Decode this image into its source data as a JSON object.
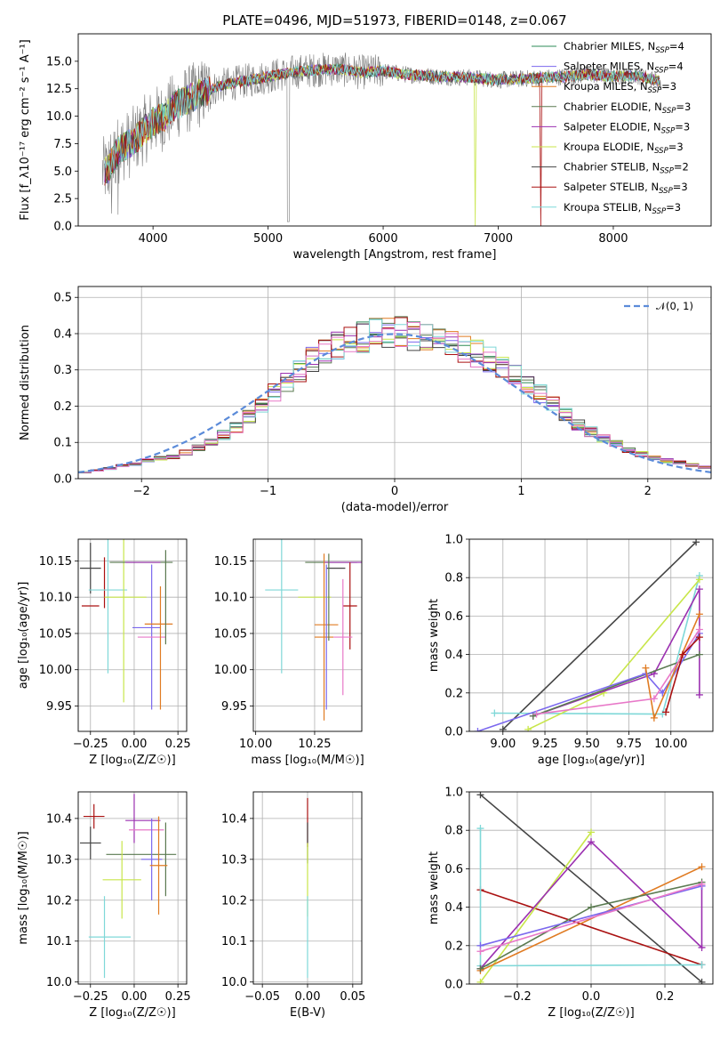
{
  "chart_data": [
    {
      "id": "spectrum",
      "type": "line",
      "title": "PLATE=0496, MJD=51973, FIBERID=0148, z=0.067",
      "xlabel": "wavelength [Angstrom, rest frame]",
      "ylabel": "Flux [f_λ10⁻¹⁷ erg cm⁻² s⁻¹ A⁻¹]",
      "xlim": [
        3350,
        8850
      ],
      "ylim": [
        0,
        17.5
      ],
      "xticks": [
        "4000",
        "5000",
        "6000",
        "7000",
        "8000"
      ],
      "yticks": [
        "0.0",
        "2.5",
        "5.0",
        "7.5",
        "10.0",
        "12.5",
        "15.0"
      ],
      "grid": false,
      "legend_position": "top-right",
      "legend": [
        {
          "label": "Chabrier MILES, N",
          "sub": "SSP",
          "suffix": "=4",
          "color": "#2e8b57"
        },
        {
          "label": "Salpeter MILES, N",
          "sub": "SSP",
          "suffix": "=4",
          "color": "#7b68ee"
        },
        {
          "label": "Kroupa MILES, N",
          "sub": "SSP",
          "suffix": "=3",
          "color": "#e07b22"
        },
        {
          "label": "Chabrier ELODIE, N",
          "sub": "SSP",
          "suffix": "=3",
          "color": "#5a7a50"
        },
        {
          "label": "Salpeter ELODIE, N",
          "sub": "SSP",
          "suffix": "=3",
          "color": "#9b30b0"
        },
        {
          "label": "Kroupa ELODIE, N",
          "sub": "SSP",
          "suffix": "=3",
          "color": "#c8e64a"
        },
        {
          "label": "Chabrier STELIB, N",
          "sub": "SSP",
          "suffix": "=2",
          "color": "#444444"
        },
        {
          "label": "Salpeter STELIB, N",
          "sub": "SSP",
          "suffix": "=3",
          "color": "#aa1111"
        },
        {
          "label": "Kroupa STELIB, N",
          "sub": "SSP",
          "suffix": "=3",
          "color": "#7fd8d8"
        }
      ],
      "continuum": {
        "x": [
          3600,
          3700,
          3800,
          3900,
          4000,
          4100,
          4200,
          4400,
          4600,
          4800,
          5000,
          5200,
          5400,
          5600,
          5800,
          6000,
          6200,
          6500,
          6800,
          7000,
          7200,
          7400,
          7600,
          7800,
          8000,
          8200,
          8400
        ],
        "y": [
          5.0,
          7.0,
          7.5,
          8.5,
          9.5,
          10.0,
          11.0,
          12.0,
          12.8,
          13.2,
          13.6,
          14.0,
          14.2,
          14.3,
          14.0,
          14.1,
          13.8,
          13.6,
          13.5,
          13.3,
          13.4,
          13.5,
          13.6,
          13.8,
          13.6,
          13.7,
          13.2
        ]
      }
    },
    {
      "id": "residuals",
      "type": "histogram",
      "xlabel": "(data-model)/error",
      "ylabel": "Normed distribution",
      "xlim": [
        -2.5,
        2.5
      ],
      "ylim": [
        0,
        0.53
      ],
      "xticks": [
        "−2",
        "−1",
        "0",
        "1",
        "2"
      ],
      "yticks": [
        "0.0",
        "0.1",
        "0.2",
        "0.3",
        "0.4",
        "0.5"
      ],
      "grid": true,
      "legend_position": "top-right",
      "legend_label": "𝒩(0, 1)",
      "normal_color": "#5b8bd9",
      "bins": [
        -2.5,
        -2.4,
        -2.3,
        -2.2,
        -2.1,
        -2.0,
        -1.9,
        -1.8,
        -1.7,
        -1.6,
        -1.5,
        -1.4,
        -1.3,
        -1.2,
        -1.1,
        -1.0,
        -0.9,
        -0.8,
        -0.7,
        -0.6,
        -0.5,
        -0.4,
        -0.3,
        -0.2,
        -0.1,
        0.0,
        0.1,
        0.2,
        0.3,
        0.4,
        0.5,
        0.6,
        0.7,
        0.8,
        0.9,
        1.0,
        1.1,
        1.2,
        1.3,
        1.4,
        1.5,
        1.6,
        1.7,
        1.8,
        1.9,
        2.0,
        2.1,
        2.2,
        2.3,
        2.4,
        2.5
      ],
      "base": [
        0.018,
        0.022,
        0.028,
        0.035,
        0.04,
        0.05,
        0.055,
        0.062,
        0.072,
        0.085,
        0.1,
        0.12,
        0.14,
        0.17,
        0.205,
        0.24,
        0.265,
        0.3,
        0.33,
        0.35,
        0.37,
        0.38,
        0.39,
        0.4,
        0.405,
        0.405,
        0.395,
        0.385,
        0.38,
        0.37,
        0.36,
        0.345,
        0.33,
        0.31,
        0.285,
        0.26,
        0.235,
        0.205,
        0.175,
        0.15,
        0.13,
        0.11,
        0.095,
        0.08,
        0.068,
        0.058,
        0.05,
        0.044,
        0.038,
        0.032
      ]
    },
    {
      "id": "age-vs-Z",
      "type": "scatter",
      "xlabel": "Z [log₁₀(Z/Z☉)]",
      "ylabel": "age  [log₁₀(age/yr)]",
      "xlim": [
        -0.32,
        0.3
      ],
      "ylim": [
        9.915,
        10.18
      ],
      "xticks": [
        "−0.25",
        "0.00",
        "0.25"
      ],
      "yticks": [
        "9.95",
        "10.00",
        "10.05",
        "10.10",
        "10.15"
      ],
      "grid": true,
      "points": [
        {
          "x": -0.25,
          "y": 10.14,
          "xerr": 0.06,
          "yerr": 0.035,
          "color": "#444444"
        },
        {
          "x": -0.17,
          "y": 10.12,
          "xerr": 0.0,
          "yerr": 0.035,
          "color": "#aa1111"
        },
        {
          "x": -0.25,
          "y": 10.088,
          "xerr": 0.05,
          "yerr": 0.0,
          "color": "#aa1111"
        },
        {
          "x": -0.15,
          "y": 10.11,
          "xerr": 0.11,
          "yerr": 0.115,
          "color": "#7fd8d8"
        },
        {
          "x": -0.06,
          "y": 10.1,
          "xerr": 0.0,
          "yerr": 0.145,
          "color": "#c8e64a"
        },
        {
          "x": -0.05,
          "y": 10.1,
          "xerr": 0.12,
          "yerr": 0.0,
          "color": "#c8e64a"
        },
        {
          "x": 0.04,
          "y": 10.148,
          "xerr": 0.18,
          "yerr": 0.0,
          "color": "#5a7a50"
        },
        {
          "x": 0.05,
          "y": 10.148,
          "xerr": 0.1,
          "yerr": 0.0,
          "color": "#9b30b0"
        },
        {
          "x": 0.1,
          "y": 10.045,
          "xerr": 0.0,
          "yerr": 0.1,
          "color": "#7b68ee"
        },
        {
          "x": 0.07,
          "y": 10.058,
          "xerr": 0.08,
          "yerr": 0.0,
          "color": "#7b68ee"
        },
        {
          "x": 0.1,
          "y": 10.045,
          "xerr": 0.08,
          "yerr": 0.0,
          "color": "#e878c8"
        },
        {
          "x": 0.14,
          "y": 10.063,
          "xerr": 0.08,
          "yerr": 0.0,
          "color": "#e07b22"
        },
        {
          "x": 0.15,
          "y": 10.03,
          "xerr": 0.0,
          "yerr": 0.085,
          "color": "#e07b22"
        },
        {
          "x": 0.18,
          "y": 10.1,
          "xerr": 0.0,
          "yerr": 0.065,
          "color": "#5a7a50"
        }
      ]
    },
    {
      "id": "age-vs-mass",
      "type": "scatter",
      "xlabel": "mass [log₁₀(M/M☉)]",
      "ylabel": "",
      "xlim": [
        9.99,
        10.45
      ],
      "ylim": [
        9.915,
        10.18
      ],
      "xticks": [
        "10.00",
        "10.25"
      ],
      "yticks": [
        "9.95",
        "10.00",
        "10.05",
        "10.10",
        "10.15"
      ],
      "grid": true,
      "points": [
        {
          "x": 10.11,
          "y": 10.11,
          "xerr": 0.07,
          "yerr": 0.115,
          "color": "#7fd8d8"
        },
        {
          "x": 10.25,
          "y": 10.1,
          "xerr": 0.07,
          "yerr": 0.0,
          "color": "#c8e64a"
        },
        {
          "x": 10.32,
          "y": 10.148,
          "xerr": 0.11,
          "yerr": 0.0,
          "color": "#5a7a50"
        },
        {
          "x": 10.37,
          "y": 10.148,
          "xerr": 0.08,
          "yerr": 0.0,
          "color": "#9b30b0"
        },
        {
          "x": 10.34,
          "y": 10.14,
          "xerr": 0.04,
          "yerr": 0.0,
          "color": "#444444"
        },
        {
          "x": 10.4,
          "y": 10.088,
          "xerr": 0.03,
          "yerr": 0.06,
          "color": "#aa1111"
        },
        {
          "x": 10.29,
          "y": 10.045,
          "xerr": 0.04,
          "yerr": 0.115,
          "color": "#e07b22"
        },
        {
          "x": 10.3,
          "y": 10.062,
          "xerr": 0.05,
          "yerr": 0.0,
          "color": "#e07b22"
        },
        {
          "x": 10.3,
          "y": 10.045,
          "xerr": 0.0,
          "yerr": 0.1,
          "color": "#7b68ee"
        },
        {
          "x": 10.37,
          "y": 10.045,
          "xerr": 0.04,
          "yerr": 0.08,
          "color": "#e878c8"
        },
        {
          "x": 10.31,
          "y": 10.1,
          "xerr": 0.0,
          "yerr": 0.06,
          "color": "#5a7a50"
        }
      ]
    },
    {
      "id": "weight-vs-age",
      "type": "line",
      "xlabel": "age  [log₁₀(age/yr)]",
      "ylabel": "mass weight",
      "xlim": [
        8.8,
        10.25
      ],
      "ylim": [
        0,
        1.0
      ],
      "xticks": [
        "9.00",
        "9.25",
        "9.50",
        "9.75",
        "10.00"
      ],
      "yticks": [
        "0.0",
        "0.2",
        "0.4",
        "0.6",
        "0.8",
        "1.0"
      ],
      "grid": true,
      "series": [
        {
          "color": "#444444",
          "x": [
            9.0,
            10.15
          ],
          "y": [
            0.01,
            0.985
          ]
        },
        {
          "color": "#7fd8d8",
          "x": [
            8.95,
            9.95,
            10.17
          ],
          "y": [
            0.095,
            0.09,
            0.81
          ]
        },
        {
          "color": "#c8e64a",
          "x": [
            9.15,
            9.6,
            10.17
          ],
          "y": [
            0.01,
            0.2,
            0.79
          ]
        },
        {
          "color": "#9b30b0",
          "x": [
            9.18,
            9.9,
            10.17,
            10.17
          ],
          "y": [
            0.08,
            0.3,
            0.74,
            0.19
          ]
        },
        {
          "color": "#5a7a50",
          "x": [
            9.18,
            10.17
          ],
          "y": [
            0.08,
            0.4
          ]
        },
        {
          "color": "#7b68ee",
          "x": [
            8.85,
            9.85,
            9.95,
            10.17
          ],
          "y": [
            0.0,
            0.3,
            0.2,
            0.51
          ]
        },
        {
          "color": "#e07b22",
          "x": [
            9.85,
            9.9,
            10.17
          ],
          "y": [
            0.33,
            0.07,
            0.61
          ]
        },
        {
          "color": "#e878c8",
          "x": [
            9.2,
            9.9,
            10.17
          ],
          "y": [
            0.09,
            0.17,
            0.53
          ]
        },
        {
          "color": "#aa1111",
          "x": [
            9.97,
            10.07,
            10.17
          ],
          "y": [
            0.1,
            0.4,
            0.49
          ]
        }
      ]
    },
    {
      "id": "mass-vs-Z",
      "type": "scatter",
      "xlabel": "Z [log₁₀(Z/Z☉)]",
      "ylabel": "mass [log₁₀(M/M☉)]",
      "xlim": [
        -0.32,
        0.3
      ],
      "ylim": [
        9.995,
        10.465
      ],
      "xticks": [
        "−0.25",
        "0.00",
        "0.25"
      ],
      "yticks": [
        "10.0",
        "10.1",
        "10.2",
        "10.3",
        "10.4"
      ],
      "grid": true,
      "points": [
        {
          "x": -0.23,
          "y": 10.405,
          "xerr": 0.06,
          "yerr": 0.03,
          "color": "#aa1111"
        },
        {
          "x": -0.25,
          "y": 10.34,
          "xerr": 0.06,
          "yerr": 0.04,
          "color": "#444444"
        },
        {
          "x": 0.05,
          "y": 10.395,
          "xerr": 0.1,
          "yerr": 0.0,
          "color": "#9b30b0"
        },
        {
          "x": 0.0,
          "y": 10.4,
          "xerr": 0.0,
          "yerr": 0.06,
          "color": "#9b30b0"
        },
        {
          "x": 0.07,
          "y": 10.372,
          "xerr": 0.1,
          "yerr": 0.0,
          "color": "#e878c8"
        },
        {
          "x": 0.04,
          "y": 10.312,
          "xerr": 0.2,
          "yerr": 0.0,
          "color": "#5a7a50"
        },
        {
          "x": 0.18,
          "y": 10.3,
          "xerr": 0.0,
          "yerr": 0.09,
          "color": "#5a7a50"
        },
        {
          "x": 0.1,
          "y": 10.3,
          "xerr": 0.06,
          "yerr": 0.1,
          "color": "#7b68ee"
        },
        {
          "x": 0.14,
          "y": 10.285,
          "xerr": 0.05,
          "yerr": 0.12,
          "color": "#e07b22"
        },
        {
          "x": -0.07,
          "y": 10.25,
          "xerr": 0.11,
          "yerr": 0.095,
          "color": "#c8e64a"
        },
        {
          "x": -0.17,
          "y": 10.11,
          "xerr": 0.0,
          "yerr": 0.1,
          "color": "#7fd8d8"
        },
        {
          "x": -0.14,
          "y": 10.11,
          "xerr": 0.12,
          "yerr": 0.0,
          "color": "#7fd8d8"
        }
      ]
    },
    {
      "id": "mass-vs-EBV",
      "type": "scatter",
      "xlabel": "E(B-V)",
      "ylabel": "",
      "xlim": [
        -0.06,
        0.06
      ],
      "ylim": [
        9.995,
        10.465
      ],
      "xticks": [
        "−0.05",
        "0.00",
        "0.05"
      ],
      "yticks": [
        "10.0",
        "10.1",
        "10.2",
        "10.3",
        "10.4"
      ],
      "grid": true,
      "points": [
        {
          "x": 0.0,
          "y": 10.39,
          "xerr": 0.0,
          "yerr": 0.06,
          "color": "#aa1111"
        },
        {
          "x": 0.0,
          "y": 10.34,
          "xerr": 0.0,
          "yerr": 0.05,
          "color": "#444444"
        },
        {
          "x": 0.0,
          "y": 10.25,
          "xerr": 0.0,
          "yerr": 0.09,
          "color": "#c8e64a"
        },
        {
          "x": 0.0,
          "y": 10.11,
          "xerr": 0.0,
          "yerr": 0.1,
          "color": "#7fd8d8"
        }
      ]
    },
    {
      "id": "weight-vs-Z",
      "type": "line",
      "xlabel": "Z [log₁₀(Z/Z☉)]",
      "ylabel": "mass weight",
      "xlim": [
        -0.33,
        0.33
      ],
      "ylim": [
        0,
        1.0
      ],
      "xticks": [
        "−0.2",
        "0.0",
        "0.2"
      ],
      "yticks": [
        "0.0",
        "0.2",
        "0.4",
        "0.6",
        "0.8",
        "1.0"
      ],
      "grid": true,
      "series": [
        {
          "color": "#444444",
          "x": [
            -0.3,
            0.3
          ],
          "y": [
            0.985,
            0.01
          ]
        },
        {
          "color": "#aa1111",
          "x": [
            -0.3,
            0.3
          ],
          "y": [
            0.49,
            0.1
          ]
        },
        {
          "color": "#7fd8d8",
          "x": [
            -0.3,
            -0.3,
            0.3
          ],
          "y": [
            0.81,
            0.095,
            0.1
          ]
        },
        {
          "color": "#c8e64a",
          "x": [
            -0.3,
            0.0
          ],
          "y": [
            0.01,
            0.79
          ]
        },
        {
          "color": "#9b30b0",
          "x": [
            -0.3,
            0.0,
            0.3,
            0.3
          ],
          "y": [
            0.08,
            0.74,
            0.19,
            0.51
          ]
        },
        {
          "color": "#e07b22",
          "x": [
            -0.3,
            0.3
          ],
          "y": [
            0.07,
            0.61
          ]
        },
        {
          "color": "#5a7a50",
          "x": [
            -0.3,
            0.0,
            0.3
          ],
          "y": [
            0.08,
            0.4,
            0.53
          ]
        },
        {
          "color": "#7b68ee",
          "x": [
            -0.3,
            0.3
          ],
          "y": [
            0.2,
            0.51
          ]
        },
        {
          "color": "#e878c8",
          "x": [
            -0.3,
            0.3
          ],
          "y": [
            0.17,
            0.52
          ]
        }
      ]
    }
  ]
}
